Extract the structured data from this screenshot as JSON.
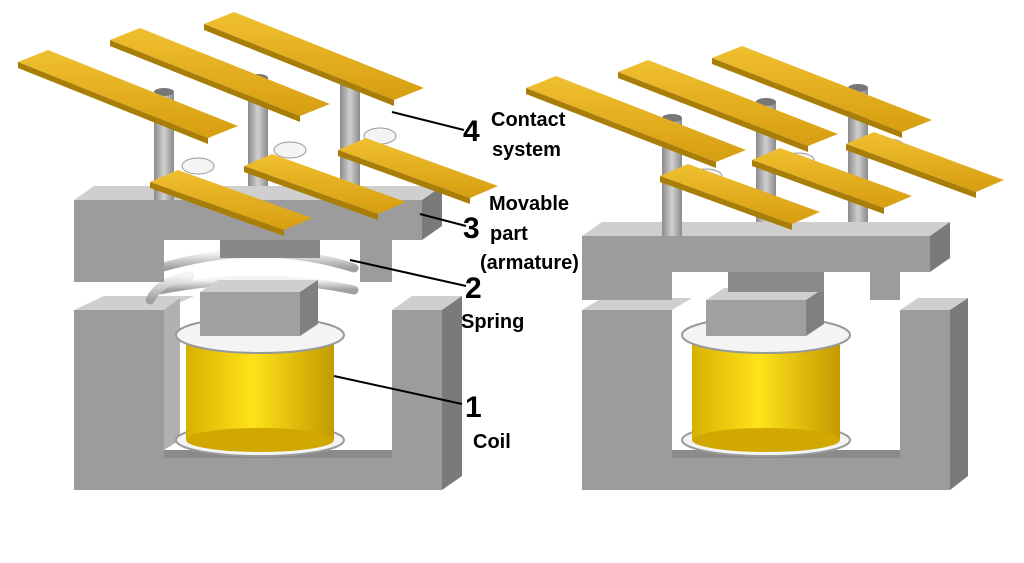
{
  "colors": {
    "core": "#9c9c9c",
    "core_top": "#cccccc",
    "core_dark": "#7a7a7a",
    "contact_bar": "#e8b21a",
    "contact_bar_edge": "#a87d08",
    "coil": "#f2d000",
    "coil_dark": "#c8a400",
    "spring": "#e2e2e2",
    "pin": "#a8a8a8"
  },
  "icons": [
    "relay-deenergized-drawing",
    "relay-energized-drawing"
  ],
  "callouts": [
    {
      "number": "4",
      "lines": [
        "Contact",
        "system"
      ]
    },
    {
      "number": "3",
      "lines": [
        "Movable",
        "part",
        "(armature)"
      ]
    },
    {
      "number": "2",
      "lines": [
        "Spring"
      ]
    },
    {
      "number": "1",
      "lines": [
        "Coil"
      ]
    }
  ]
}
